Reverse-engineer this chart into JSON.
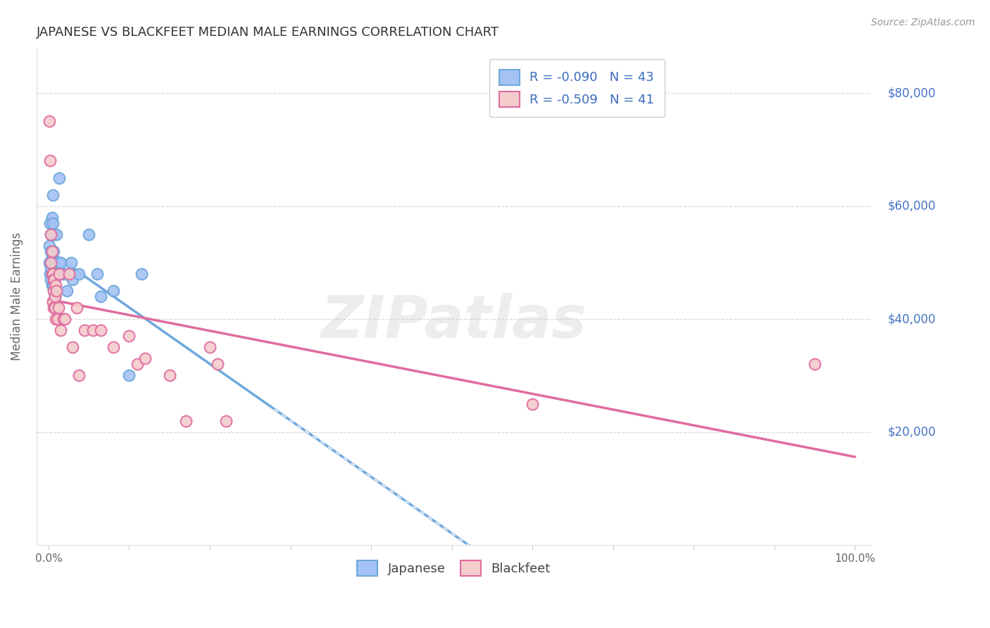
{
  "title": "JAPANESE VS BLACKFEET MEDIAN MALE EARNINGS CORRELATION CHART",
  "source": "Source: ZipAtlas.com",
  "ylabel": "Median Male Earnings",
  "yticks": [
    0,
    20000,
    40000,
    60000,
    80000
  ],
  "ytick_labels": [
    "",
    "$20,000",
    "$40,000",
    "$60,000",
    "$80,000"
  ],
  "legend_label1": "Japanese",
  "legend_label2": "Blackfeet",
  "blue_fill": "#a4c2f4",
  "blue_edge": "#6fa8dc",
  "pink_fill": "#f4cccc",
  "pink_edge": "#e06c9f",
  "trend_blue": "#6fa8dc",
  "trend_pink": "#e06c9f",
  "background_color": "#ffffff",
  "grid_color": "#cccccc",
  "watermark": "ZIPatlas",
  "japanese_x": [
    0.001,
    0.001,
    0.002,
    0.002,
    0.003,
    0.003,
    0.003,
    0.003,
    0.004,
    0.004,
    0.004,
    0.004,
    0.005,
    0.005,
    0.005,
    0.005,
    0.005,
    0.006,
    0.006,
    0.006,
    0.006,
    0.007,
    0.007,
    0.008,
    0.008,
    0.009,
    0.01,
    0.011,
    0.012,
    0.013,
    0.015,
    0.017,
    0.02,
    0.023,
    0.028,
    0.03,
    0.038,
    0.05,
    0.06,
    0.065,
    0.08,
    0.1,
    0.115
  ],
  "japanese_y": [
    53000,
    50000,
    57000,
    48000,
    55000,
    52000,
    49000,
    47000,
    58000,
    55000,
    51000,
    46000,
    62000,
    57000,
    55000,
    50000,
    46000,
    55000,
    52000,
    48000,
    46000,
    50000,
    47000,
    50000,
    44000,
    48000,
    55000,
    50000,
    50000,
    65000,
    50000,
    48000,
    48000,
    45000,
    50000,
    47000,
    48000,
    55000,
    48000,
    44000,
    45000,
    30000,
    48000
  ],
  "blackfeet_x": [
    0.001,
    0.002,
    0.003,
    0.003,
    0.004,
    0.004,
    0.005,
    0.005,
    0.006,
    0.006,
    0.006,
    0.007,
    0.008,
    0.008,
    0.009,
    0.009,
    0.01,
    0.011,
    0.012,
    0.013,
    0.015,
    0.018,
    0.02,
    0.025,
    0.03,
    0.035,
    0.038,
    0.045,
    0.055,
    0.065,
    0.08,
    0.1,
    0.11,
    0.12,
    0.15,
    0.17,
    0.2,
    0.21,
    0.22,
    0.6,
    0.95
  ],
  "blackfeet_y": [
    75000,
    68000,
    55000,
    50000,
    52000,
    48000,
    48000,
    43000,
    47000,
    45000,
    42000,
    47000,
    44000,
    42000,
    46000,
    40000,
    45000,
    40000,
    42000,
    48000,
    38000,
    40000,
    40000,
    48000,
    35000,
    42000,
    30000,
    38000,
    38000,
    38000,
    35000,
    37000,
    32000,
    33000,
    30000,
    22000,
    35000,
    32000,
    22000,
    25000,
    32000
  ]
}
